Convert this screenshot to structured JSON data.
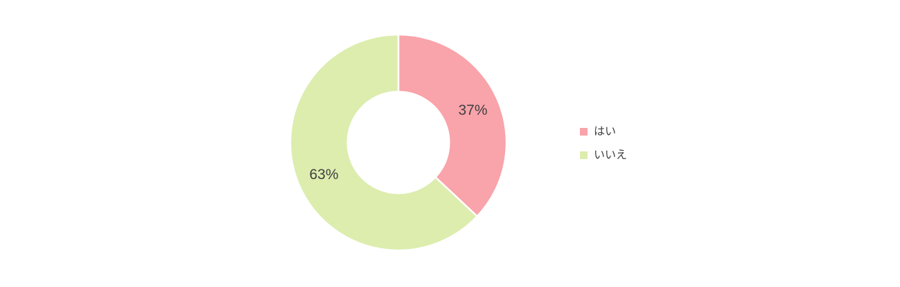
{
  "chart_data": {
    "type": "pie",
    "subtype": "donut",
    "title": "",
    "categories": [
      "はい",
      "いいえ"
    ],
    "values": [
      37,
      63
    ],
    "data_labels": [
      "37%",
      "63%"
    ],
    "colors": [
      "#F9A3AA",
      "#DCEDAE"
    ],
    "start_angle_deg": 0,
    "direction": "clockwise",
    "hole_ratio": 0.47,
    "legend_position": "right",
    "data_label_color": "#404040",
    "segment_gap_color": "#FFFFFF"
  },
  "legend": {
    "items": [
      {
        "label": "はい",
        "color": "#F9A3AA"
      },
      {
        "label": "いいえ",
        "color": "#DCEDAE"
      }
    ]
  }
}
